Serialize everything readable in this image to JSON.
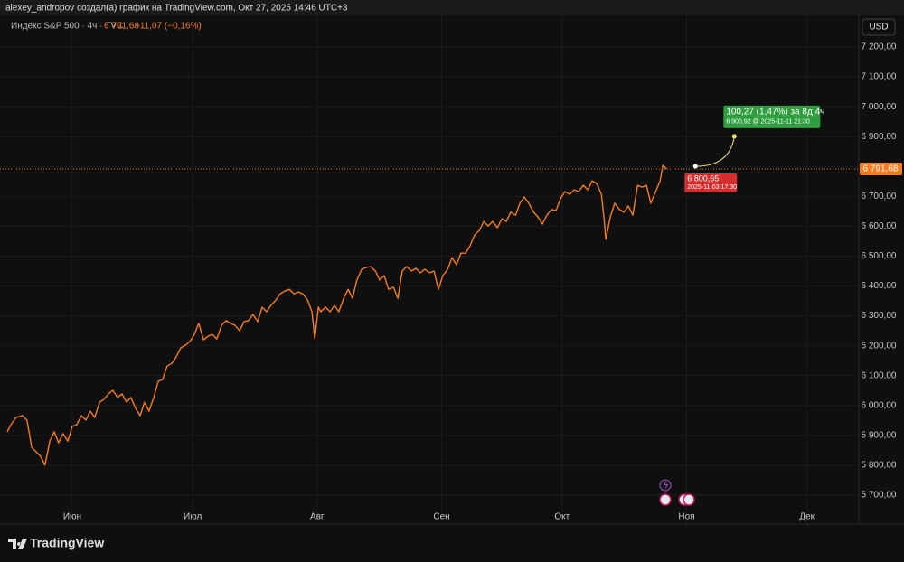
{
  "header": "alexey_andropov создал(а) график на TradingView.com, Окт 27, 2025 14:46 UTC+3",
  "brand": "TradingView",
  "chart_data": {
    "type": "line",
    "symbol": "Индекс S&P 500 · 4ч · TVC",
    "price_label": "6 791,68",
    "change_label": "−11,07 (−0,16%)",
    "currency": "USD",
    "x": [
      -16.2,
      -15.3,
      -14.0,
      -12.4,
      -11.3,
      -10.1,
      -9.0,
      -7.9,
      -6.8,
      -5.6,
      -4.5,
      -3.4,
      -2.3,
      -1.1,
      0,
      1.1,
      2.3,
      3.4,
      4.5,
      5.6,
      6.8,
      7.9,
      9.0,
      10.1,
      11.3,
      12.4,
      13.5,
      14.6,
      15.8,
      16.9,
      18.0,
      19.1,
      20.3,
      21.4,
      22.5,
      23.6,
      24.8,
      25.9,
      27.0,
      28.2,
      29.3,
      30.4,
      31.5,
      32.7,
      33.8,
      34.9,
      36.0,
      37.2,
      38.3,
      39.4,
      40.5,
      41.7,
      42.8,
      43.9,
      45.0,
      46.2,
      47.3,
      48.4,
      49.5,
      50.7,
      51.8,
      52.9,
      54.1,
      55.2,
      56.3,
      57.4,
      58.6,
      59.7,
      60.4,
      61.3,
      61.9,
      63.1,
      64.2,
      65.3,
      66.4,
      67.6,
      68.7,
      69.8,
      70.9,
      72.1,
      73.2,
      74.3,
      75.5,
      76.6,
      77.7,
      78.8,
      80.0,
      81.1,
      82.2,
      83.3,
      84.5,
      85.6,
      86.7,
      87.8,
      89.0,
      90.1,
      91.2,
      92.3,
      93.5,
      94.6,
      95.7,
      96.8,
      98.0,
      99.1,
      100.2,
      101.4,
      102.5,
      103.6,
      104.7,
      105.9,
      107.0,
      108.1,
      109.2,
      110.4,
      111.5,
      112.6,
      113.7,
      114.9,
      116.0,
      117.1,
      118.2,
      119.4,
      120.5,
      121.6,
      122.7,
      123.9,
      125.0,
      126.1,
      127.3,
      128.4,
      129.5,
      130.6,
      131.8,
      132.4,
      132.9,
      134.0,
      135.1,
      136.3,
      137.4,
      138.5,
      139.6,
      140.8,
      141.9,
      143.0,
      144.1,
      145.3,
      146.4,
      147.1,
      148.0
    ],
    "series": [
      {
        "name": "Индекс S&P 500",
        "color": "#f57c1f",
        "values": [
          5912,
          5936,
          5960,
          5966,
          5951,
          5860,
          5845,
          5830,
          5800,
          5881,
          5912,
          5875,
          5906,
          5881,
          5930,
          5936,
          5966,
          5951,
          5981,
          5960,
          6011,
          6021,
          6039,
          6051,
          6027,
          6039,
          6011,
          6027,
          5990,
          5966,
          6011,
          5981,
          6027,
          6081,
          6087,
          6132,
          6141,
          6163,
          6193,
          6202,
          6214,
          6238,
          6275,
          6220,
          6232,
          6238,
          6223,
          6269,
          6284,
          6275,
          6269,
          6250,
          6281,
          6284,
          6305,
          6281,
          6329,
          6314,
          6335,
          6353,
          6374,
          6383,
          6389,
          6374,
          6380,
          6374,
          6353,
          6314,
          6223,
          6329,
          6314,
          6329,
          6314,
          6335,
          6314,
          6359,
          6389,
          6359,
          6420,
          6456,
          6462,
          6465,
          6450,
          6420,
          6435,
          6389,
          6396,
          6359,
          6450,
          6465,
          6450,
          6459,
          6444,
          6456,
          6444,
          6450,
          6389,
          6435,
          6456,
          6495,
          6471,
          6510,
          6510,
          6535,
          6571,
          6586,
          6616,
          6601,
          6616,
          6595,
          6625,
          6616,
          6647,
          6637,
          6677,
          6698,
          6677,
          6647,
          6631,
          6607,
          6637,
          6656,
          6653,
          6692,
          6716,
          6707,
          6722,
          6716,
          6737,
          6722,
          6752,
          6743,
          6707,
          6631,
          6556,
          6631,
          6677,
          6656,
          6647,
          6668,
          6637,
          6737,
          6731,
          6737,
          6677,
          6716,
          6752,
          6804,
          6791.68
        ]
      }
    ],
    "last_price": 6791.68,
    "forecast": {
      "start": {
        "x": 155.2,
        "value": 6800.65,
        "label": "6 800,65",
        "time": "2025-11-03 17:30"
      },
      "end": {
        "x": 164.9,
        "value": 6900.92,
        "label": "6 900,92 @ 2025-11-11  21:30"
      },
      "change": "100,27 (1,47%) за 8д 4ч"
    },
    "xlim": [
      -18,
      195.9
    ],
    "xticks": [
      {
        "value": 0,
        "label": "Июн"
      },
      {
        "value": 30,
        "label": "Июл"
      },
      {
        "value": 61,
        "label": "Авг"
      },
      {
        "value": 92,
        "label": "Сен"
      },
      {
        "value": 122,
        "label": "Окт"
      },
      {
        "value": 153,
        "label": "Ноя"
      },
      {
        "value": 183,
        "label": "Дек"
      }
    ],
    "ylim": [
      5648.6,
      7302.8
    ],
    "yticks": [
      {
        "value": 5700,
        "label": "5 700,00"
      },
      {
        "value": 5800,
        "label": "5 800,00"
      },
      {
        "value": 5900,
        "label": "5 900,00"
      },
      {
        "value": 6000,
        "label": "6 000,00"
      },
      {
        "value": 6100,
        "label": "6 100,00"
      },
      {
        "value": 6200,
        "label": "6 200,00"
      },
      {
        "value": 6300,
        "label": "6 300,00"
      },
      {
        "value": 6400,
        "label": "6 400,00"
      },
      {
        "value": 6500,
        "label": "6 500,00"
      },
      {
        "value": 6600,
        "label": "6 600,00"
      },
      {
        "value": 6700,
        "label": "6 700,00"
      },
      {
        "value": 6800,
        "label": "6 800,00"
      },
      {
        "value": 6900,
        "label": "6 900,00"
      },
      {
        "value": 7000,
        "label": "7 000,00"
      },
      {
        "value": 7100,
        "label": "7 100,00"
      },
      {
        "value": 7200,
        "label": "7 200,00"
      }
    ],
    "grid": true
  }
}
